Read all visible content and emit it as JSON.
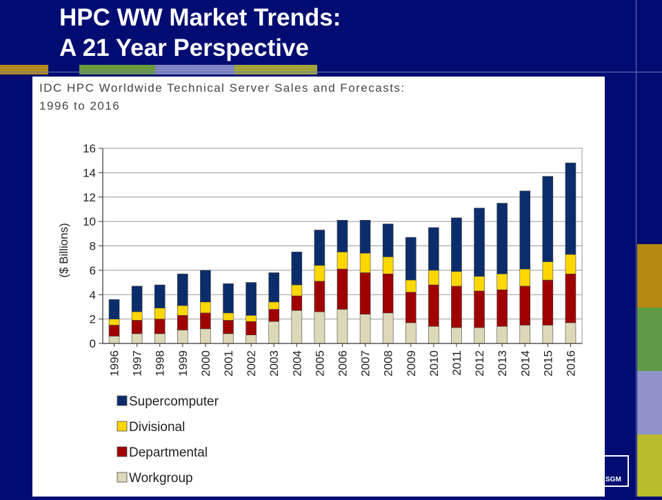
{
  "slide": {
    "title_line1": "HPC WW Market Trends:",
    "title_line2": "A 21 Year Perspective",
    "background_color": "#000c72",
    "logo_text": "SGM"
  },
  "chart_data": {
    "type": "bar",
    "stacked": true,
    "title_line1": "IDC HPC Worldwide Technical Server Sales and Forecasts:",
    "title_line2": "1996 to 2016",
    "xlabel": "",
    "ylabel": "($ Billions)",
    "ylim": [
      0,
      16
    ],
    "yticks": [
      0,
      2,
      4,
      6,
      8,
      10,
      12,
      14,
      16
    ],
    "grid": true,
    "legend_position": "bottom-left",
    "categories": [
      "1996",
      "1997",
      "1998",
      "1999",
      "2000",
      "2001",
      "2002",
      "2003",
      "2004",
      "2005",
      "2006",
      "2007",
      "2008",
      "2009",
      "2010",
      "2011",
      "2012",
      "2013",
      "2014",
      "2015",
      "2016"
    ],
    "series": [
      {
        "name": "Workgroup",
        "color": "#ddd8b8",
        "values": [
          0.6,
          0.8,
          0.8,
          1.1,
          1.2,
          0.8,
          0.7,
          1.8,
          2.7,
          2.6,
          2.8,
          2.4,
          2.5,
          1.7,
          1.4,
          1.3,
          1.3,
          1.4,
          1.5,
          1.5,
          1.7
        ]
      },
      {
        "name": "Departmental",
        "color": "#a00000",
        "values": [
          0.9,
          1.1,
          1.2,
          1.2,
          1.3,
          1.1,
          1.1,
          1.0,
          1.2,
          2.5,
          3.3,
          3.4,
          3.2,
          2.5,
          3.4,
          3.4,
          3.0,
          3.0,
          3.2,
          3.7,
          4.0
        ]
      },
      {
        "name": "Divisional",
        "color": "#ffd700",
        "values": [
          0.5,
          0.7,
          0.9,
          0.8,
          0.9,
          0.6,
          0.5,
          0.6,
          0.9,
          1.3,
          1.4,
          1.6,
          1.4,
          1.0,
          1.2,
          1.2,
          1.2,
          1.3,
          1.4,
          1.5,
          1.6
        ]
      },
      {
        "name": "Supercomputer",
        "color": "#0b2d6b",
        "values": [
          1.6,
          2.1,
          1.9,
          2.6,
          2.6,
          2.4,
          2.7,
          2.4,
          2.7,
          2.9,
          2.6,
          2.7,
          2.7,
          3.5,
          3.5,
          4.4,
          5.6,
          5.8,
          6.4,
          7.0,
          7.5
        ]
      }
    ],
    "legend_order": [
      "Supercomputer",
      "Divisional",
      "Departmental",
      "Workgroup"
    ]
  }
}
